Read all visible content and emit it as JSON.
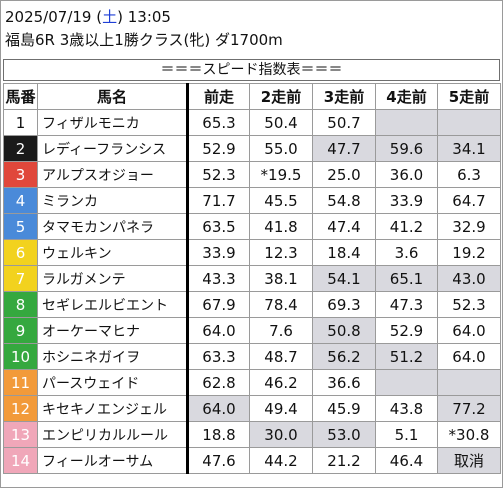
{
  "header": {
    "date": "2025/07/19",
    "dow_open": " (",
    "dow": "土",
    "dow_close": ")",
    "time": " 13:05",
    "race": "福島6R 3歳以上1勝クラス(牝) ダ1700m"
  },
  "title": "＝＝＝スピード指数表＝＝＝",
  "columns": [
    "馬番",
    "馬名",
    "前走",
    "2走前",
    "3走前",
    "4走前",
    "5走前"
  ],
  "colors": {
    "frame_1": "#ffffff",
    "frame_2": "#1a1a1a",
    "frame_3": "#e0483b",
    "frame_4": "#4a8ad9",
    "frame_5": "#f2d21e",
    "frame_6": "#35a83f",
    "frame_7": "#f29a3a",
    "frame_8": "#f0a7b9",
    "highlight": "#d9d9df"
  },
  "rows": [
    {
      "num": "1",
      "name": "フィザルモニカ",
      "v": [
        "65.3",
        "50.4",
        "50.7",
        "",
        ""
      ],
      "hl": [
        false,
        false,
        false,
        true,
        true
      ],
      "bg": "#ffffff",
      "fg": "#111111"
    },
    {
      "num": "2",
      "name": "レディーフランシス",
      "v": [
        "52.9",
        "55.0",
        "47.7",
        "59.6",
        "34.1"
      ],
      "hl": [
        false,
        false,
        true,
        true,
        true
      ],
      "bg": "#1a1a1a",
      "fg": "#ffffff"
    },
    {
      "num": "3",
      "name": "アルプスオジョー",
      "v": [
        "52.3",
        "*19.5",
        "25.0",
        "36.0",
        "6.3"
      ],
      "hl": [
        false,
        false,
        false,
        false,
        false
      ],
      "bg": "#e0483b",
      "fg": "#ffffff"
    },
    {
      "num": "4",
      "name": "ミランカ",
      "v": [
        "71.7",
        "45.5",
        "54.8",
        "33.9",
        "64.7"
      ],
      "hl": [
        false,
        false,
        false,
        false,
        false
      ],
      "bg": "#4a8ad9",
      "fg": "#ffffff"
    },
    {
      "num": "5",
      "name": "タマモカンパネラ",
      "v": [
        "63.5",
        "41.8",
        "47.4",
        "41.2",
        "32.9"
      ],
      "hl": [
        false,
        false,
        false,
        false,
        false
      ],
      "bg": "#4a8ad9",
      "fg": "#ffffff"
    },
    {
      "num": "6",
      "name": "ウェルキン",
      "v": [
        "33.9",
        "12.3",
        "18.4",
        "3.6",
        "19.2"
      ],
      "hl": [
        false,
        false,
        false,
        false,
        false
      ],
      "bg": "#f2d21e",
      "fg": "#ffffff"
    },
    {
      "num": "7",
      "name": "ラルガメンテ",
      "v": [
        "43.3",
        "38.1",
        "54.1",
        "65.1",
        "43.0"
      ],
      "hl": [
        false,
        false,
        true,
        true,
        true
      ],
      "bg": "#f2d21e",
      "fg": "#ffffff"
    },
    {
      "num": "8",
      "name": "セギレエルビエント",
      "v": [
        "67.9",
        "78.4",
        "69.3",
        "47.3",
        "52.3"
      ],
      "hl": [
        false,
        false,
        false,
        false,
        false
      ],
      "bg": "#35a83f",
      "fg": "#ffffff"
    },
    {
      "num": "9",
      "name": "オーケーマヒナ",
      "v": [
        "64.0",
        "7.6",
        "50.8",
        "52.9",
        "64.0"
      ],
      "hl": [
        false,
        false,
        true,
        false,
        false
      ],
      "bg": "#35a83f",
      "fg": "#ffffff"
    },
    {
      "num": "10",
      "name": "ホシニネガイヲ",
      "v": [
        "63.3",
        "48.7",
        "56.2",
        "51.2",
        "64.0"
      ],
      "hl": [
        false,
        false,
        true,
        true,
        false
      ],
      "bg": "#35a83f",
      "fg": "#ffffff"
    },
    {
      "num": "11",
      "name": "パースウェイド",
      "v": [
        "62.8",
        "46.2",
        "36.6",
        "",
        ""
      ],
      "hl": [
        false,
        false,
        false,
        true,
        true
      ],
      "bg": "#f29a3a",
      "fg": "#ffffff"
    },
    {
      "num": "12",
      "name": "キセキノエンジェル",
      "v": [
        "64.0",
        "49.4",
        "45.9",
        "43.8",
        "77.2"
      ],
      "hl": [
        true,
        false,
        false,
        false,
        true
      ],
      "bg": "#f29a3a",
      "fg": "#ffffff"
    },
    {
      "num": "13",
      "name": "エンピリカルルール",
      "v": [
        "18.8",
        "30.0",
        "53.0",
        "5.1",
        "*30.8"
      ],
      "hl": [
        false,
        true,
        true,
        false,
        false
      ],
      "bg": "#f0a7b9",
      "fg": "#ffffff"
    },
    {
      "num": "14",
      "name": "フィールオーサム",
      "v": [
        "47.6",
        "44.2",
        "21.2",
        "46.4",
        "取消"
      ],
      "hl": [
        false,
        false,
        false,
        false,
        true
      ],
      "bg": "#f0a7b9",
      "fg": "#ffffff"
    }
  ]
}
